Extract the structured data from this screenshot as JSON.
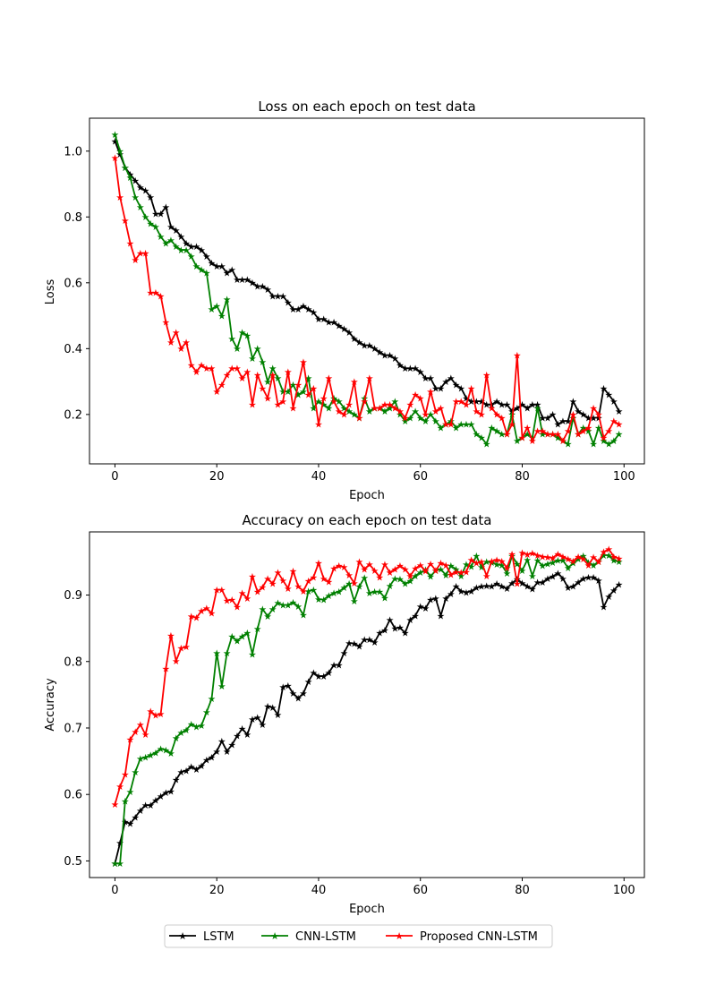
{
  "chart_data": [
    {
      "type": "line",
      "title": "Loss on each epoch on test data",
      "xlabel": "Epoch",
      "ylabel": "Loss",
      "xlim": [
        -5,
        104
      ],
      "ylim": [
        0.05,
        1.1
      ],
      "xticks": [
        0,
        20,
        40,
        60,
        80,
        100
      ],
      "yticks": [
        0.2,
        0.4,
        0.6,
        0.8,
        1.0
      ],
      "ytick_labels": [
        "0.2",
        "0.4",
        "0.6",
        "0.8",
        "1.0"
      ],
      "grid": false,
      "series": [
        {
          "name": "LSTM",
          "color": "#000000",
          "values": [
            1.03,
            0.99,
            0.95,
            0.93,
            0.91,
            0.89,
            0.88,
            0.86,
            0.81,
            0.81,
            0.83,
            0.77,
            0.76,
            0.74,
            0.72,
            0.71,
            0.71,
            0.7,
            0.68,
            0.66,
            0.65,
            0.65,
            0.63,
            0.64,
            0.61,
            0.61,
            0.61,
            0.6,
            0.59,
            0.59,
            0.58,
            0.56,
            0.56,
            0.56,
            0.54,
            0.52,
            0.52,
            0.53,
            0.52,
            0.51,
            0.49,
            0.49,
            0.48,
            0.48,
            0.47,
            0.46,
            0.45,
            0.43,
            0.42,
            0.41,
            0.41,
            0.4,
            0.39,
            0.38,
            0.38,
            0.37,
            0.35,
            0.34,
            0.34,
            0.34,
            0.33,
            0.31,
            0.31,
            0.28,
            0.28,
            0.3,
            0.31,
            0.29,
            0.28,
            0.25,
            0.24,
            0.24,
            0.24,
            0.23,
            0.23,
            0.24,
            0.23,
            0.23,
            0.21,
            0.22,
            0.23,
            0.22,
            0.23,
            0.23,
            0.19,
            0.19,
            0.2,
            0.17,
            0.18,
            0.18,
            0.24,
            0.21,
            0.2,
            0.19,
            0.19,
            0.19,
            0.28,
            0.26,
            0.24,
            0.21
          ]
        },
        {
          "name": "CNN-LSTM",
          "color": "#008000",
          "values": [
            1.05,
            1.0,
            0.95,
            0.92,
            0.86,
            0.83,
            0.8,
            0.78,
            0.77,
            0.74,
            0.72,
            0.73,
            0.71,
            0.7,
            0.7,
            0.68,
            0.65,
            0.64,
            0.63,
            0.52,
            0.53,
            0.5,
            0.55,
            0.43,
            0.4,
            0.45,
            0.44,
            0.37,
            0.4,
            0.36,
            0.3,
            0.34,
            0.31,
            0.27,
            0.27,
            0.29,
            0.26,
            0.27,
            0.31,
            0.22,
            0.24,
            0.23,
            0.22,
            0.25,
            0.24,
            0.22,
            0.21,
            0.2,
            0.19,
            0.25,
            0.21,
            0.22,
            0.22,
            0.21,
            0.22,
            0.24,
            0.2,
            0.18,
            0.19,
            0.21,
            0.19,
            0.18,
            0.2,
            0.18,
            0.16,
            0.17,
            0.18,
            0.16,
            0.17,
            0.17,
            0.17,
            0.14,
            0.13,
            0.11,
            0.16,
            0.15,
            0.14,
            0.14,
            0.2,
            0.12,
            0.13,
            0.14,
            0.13,
            0.22,
            0.14,
            0.14,
            0.14,
            0.13,
            0.12,
            0.11,
            0.19,
            0.14,
            0.16,
            0.15,
            0.11,
            0.16,
            0.12,
            0.11,
            0.12,
            0.14
          ]
        },
        {
          "name": "Proposed CNN-LSTM",
          "color": "#ff0000",
          "values": [
            0.98,
            0.86,
            0.79,
            0.72,
            0.67,
            0.69,
            0.69,
            0.57,
            0.57,
            0.56,
            0.48,
            0.42,
            0.45,
            0.4,
            0.42,
            0.35,
            0.33,
            0.35,
            0.34,
            0.34,
            0.27,
            0.29,
            0.32,
            0.34,
            0.34,
            0.31,
            0.33,
            0.23,
            0.32,
            0.28,
            0.25,
            0.32,
            0.23,
            0.24,
            0.33,
            0.22,
            0.29,
            0.36,
            0.26,
            0.28,
            0.17,
            0.25,
            0.31,
            0.24,
            0.21,
            0.2,
            0.23,
            0.3,
            0.19,
            0.24,
            0.31,
            0.22,
            0.22,
            0.23,
            0.23,
            0.22,
            0.21,
            0.19,
            0.23,
            0.26,
            0.25,
            0.2,
            0.27,
            0.21,
            0.22,
            0.17,
            0.17,
            0.24,
            0.24,
            0.23,
            0.28,
            0.21,
            0.2,
            0.32,
            0.22,
            0.2,
            0.19,
            0.14,
            0.17,
            0.38,
            0.13,
            0.16,
            0.12,
            0.15,
            0.15,
            0.14,
            0.14,
            0.14,
            0.12,
            0.15,
            0.2,
            0.14,
            0.15,
            0.16,
            0.22,
            0.2,
            0.13,
            0.15,
            0.18,
            0.17
          ]
        }
      ]
    },
    {
      "type": "line",
      "title": "Accuracy on each epoch on test data",
      "xlabel": "Epoch",
      "ylabel": "Accuracy",
      "xlim": [
        -5,
        104
      ],
      "ylim": [
        0.475,
        0.995
      ],
      "xticks": [
        0,
        20,
        40,
        60,
        80,
        100
      ],
      "yticks": [
        0.5,
        0.6,
        0.7,
        0.8,
        0.9
      ],
      "ytick_labels": [
        "0.5",
        "0.6",
        "0.7",
        "0.8",
        "0.9"
      ],
      "grid": false,
      "series": [
        {
          "name": "LSTM",
          "color": "#000000",
          "values": [
            0.496,
            0.527,
            0.559,
            0.556,
            0.566,
            0.576,
            0.584,
            0.584,
            0.591,
            0.597,
            0.603,
            0.605,
            0.622,
            0.634,
            0.636,
            0.642,
            0.638,
            0.643,
            0.652,
            0.656,
            0.665,
            0.68,
            0.665,
            0.675,
            0.688,
            0.699,
            0.69,
            0.713,
            0.716,
            0.705,
            0.733,
            0.731,
            0.72,
            0.762,
            0.764,
            0.752,
            0.745,
            0.752,
            0.77,
            0.783,
            0.778,
            0.778,
            0.783,
            0.795,
            0.795,
            0.813,
            0.828,
            0.827,
            0.823,
            0.833,
            0.833,
            0.829,
            0.843,
            0.847,
            0.863,
            0.85,
            0.851,
            0.843,
            0.863,
            0.869,
            0.883,
            0.88,
            0.893,
            0.895,
            0.869,
            0.895,
            0.902,
            0.913,
            0.906,
            0.904,
            0.906,
            0.911,
            0.913,
            0.914,
            0.913,
            0.917,
            0.913,
            0.91,
            0.918,
            0.924,
            0.918,
            0.913,
            0.909,
            0.919,
            0.919,
            0.925,
            0.928,
            0.933,
            0.925,
            0.911,
            0.913,
            0.919,
            0.925,
            0.927,
            0.927,
            0.922,
            0.882,
            0.898,
            0.907,
            0.916
          ]
        },
        {
          "name": "CNN-LSTM",
          "color": "#008000",
          "values": [
            0.496,
            0.496,
            0.59,
            0.604,
            0.634,
            0.654,
            0.656,
            0.659,
            0.663,
            0.669,
            0.667,
            0.662,
            0.685,
            0.693,
            0.697,
            0.706,
            0.702,
            0.704,
            0.724,
            0.744,
            0.813,
            0.763,
            0.813,
            0.838,
            0.831,
            0.838,
            0.843,
            0.811,
            0.849,
            0.879,
            0.868,
            0.879,
            0.888,
            0.885,
            0.885,
            0.889,
            0.883,
            0.87,
            0.906,
            0.908,
            0.894,
            0.893,
            0.899,
            0.903,
            0.905,
            0.911,
            0.917,
            0.891,
            0.913,
            0.926,
            0.903,
            0.905,
            0.905,
            0.896,
            0.914,
            0.925,
            0.924,
            0.917,
            0.921,
            0.929,
            0.934,
            0.938,
            0.928,
            0.937,
            0.939,
            0.93,
            0.944,
            0.939,
            0.929,
            0.946,
            0.943,
            0.959,
            0.942,
            0.95,
            0.949,
            0.946,
            0.945,
            0.933,
            0.959,
            0.947,
            0.937,
            0.953,
            0.929,
            0.952,
            0.944,
            0.947,
            0.949,
            0.952,
            0.952,
            0.941,
            0.948,
            0.954,
            0.959,
            0.949,
            0.945,
            0.95,
            0.96,
            0.96,
            0.952,
            0.95
          ]
        },
        {
          "name": "Proposed CNN-LSTM",
          "color": "#ff0000",
          "values": [
            0.585,
            0.612,
            0.63,
            0.683,
            0.694,
            0.705,
            0.69,
            0.725,
            0.719,
            0.721,
            0.789,
            0.839,
            0.801,
            0.82,
            0.822,
            0.868,
            0.866,
            0.876,
            0.88,
            0.873,
            0.908,
            0.908,
            0.892,
            0.893,
            0.882,
            0.903,
            0.895,
            0.928,
            0.905,
            0.912,
            0.925,
            0.917,
            0.934,
            0.922,
            0.91,
            0.936,
            0.913,
            0.906,
            0.921,
            0.927,
            0.948,
            0.925,
            0.92,
            0.94,
            0.944,
            0.942,
            0.93,
            0.918,
            0.95,
            0.939,
            0.946,
            0.937,
            0.927,
            0.946,
            0.934,
            0.939,
            0.944,
            0.939,
            0.929,
            0.94,
            0.945,
            0.936,
            0.947,
            0.937,
            0.948,
            0.945,
            0.931,
            0.935,
            0.934,
            0.935,
            0.953,
            0.948,
            0.95,
            0.929,
            0.951,
            0.953,
            0.951,
            0.941,
            0.962,
            0.917,
            0.964,
            0.961,
            0.963,
            0.96,
            0.958,
            0.957,
            0.956,
            0.962,
            0.958,
            0.954,
            0.951,
            0.958,
            0.954,
            0.945,
            0.957,
            0.95,
            0.965,
            0.969,
            0.958,
            0.955
          ]
        }
      ]
    }
  ],
  "legend": {
    "placement": "bottom-center",
    "entries": [
      "LSTM",
      "CNN-LSTM",
      "Proposed CNN-LSTM"
    ]
  }
}
